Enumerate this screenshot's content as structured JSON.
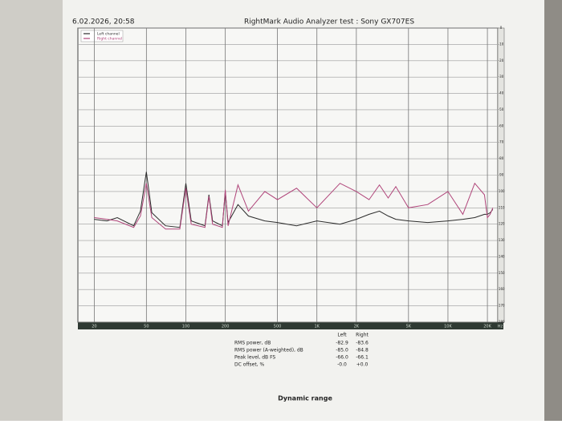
{
  "header": {
    "timestamp": "6.02.2026, 20:58",
    "title": "RightMark Audio Analyzer test : Sony GX707ES"
  },
  "chart_data": {
    "type": "line",
    "xscale": "log",
    "grid": true,
    "legend": "upper left",
    "x": [
      20,
      25,
      30,
      40,
      45,
      50,
      55,
      70,
      90,
      100,
      110,
      140,
      150,
      160,
      190,
      200,
      210,
      250,
      300,
      400,
      500,
      700,
      1000,
      1500,
      2000,
      2500,
      3000,
      3500,
      4000,
      5000,
      7000,
      10000,
      13000,
      16000,
      19000,
      20000,
      21000,
      22000
    ],
    "series": [
      {
        "name": "Left channel",
        "color": "#2b2b2b",
        "values": [
          -117,
          -118,
          -116,
          -121,
          -112,
          -88,
          -113,
          -121,
          -122,
          -95,
          -118,
          -121,
          -102,
          -118,
          -121,
          -100,
          -119,
          -108,
          -115,
          -118,
          -119,
          -121,
          -118,
          -120,
          -117,
          -114,
          -112,
          -115,
          -117,
          -118,
          -119,
          -118,
          -117,
          -116,
          -114,
          -114,
          -113,
          -111
        ]
      },
      {
        "name": "Right channel",
        "color": "#b0457a",
        "values": [
          -116,
          -117,
          -118,
          -122,
          -115,
          -95,
          -116,
          -123,
          -123,
          -98,
          -120,
          -122,
          -103,
          -120,
          -122,
          -99,
          -121,
          -96,
          -112,
          -100,
          -105,
          -98,
          -110,
          -95,
          -100,
          -105,
          -96,
          -104,
          -97,
          -110,
          -108,
          -100,
          -114,
          -95,
          -102,
          -116,
          -114,
          -110
        ]
      }
    ],
    "xlim": [
      15,
      24000
    ],
    "xticks": [
      20,
      50,
      100,
      200,
      500,
      {
        "value": 1000,
        "label": "1K"
      },
      {
        "value": 2000,
        "label": "2K"
      },
      {
        "value": 5000,
        "label": "5K"
      },
      {
        "value": 10000,
        "label": "10K"
      },
      {
        "value": 20000,
        "label": "20K"
      }
    ],
    "xunit": "Hz",
    "ylim": [
      -180,
      0
    ],
    "yticks": [
      0,
      -10,
      -20,
      -30,
      -40,
      -50,
      -60,
      -70,
      -80,
      -90,
      -100,
      -110,
      -120,
      -130,
      -140,
      -150,
      -160,
      -170,
      -180
    ]
  },
  "measurements": {
    "columns": [
      "Left",
      "Right"
    ],
    "rows": [
      {
        "label": "RMS power, dB",
        "values": [
          "-82.9",
          "-83.6"
        ]
      },
      {
        "label": "RMS power (A-weighted), dB",
        "values": [
          "-85.0",
          "-84.8"
        ]
      },
      {
        "label": "Peak level, dB FS",
        "values": [
          "-66.0",
          "-66.1"
        ]
      },
      {
        "label": "DC offset, %",
        "values": [
          "-0.0",
          "+0.0"
        ]
      }
    ]
  },
  "footer": {
    "caption": "Dynamic range"
  }
}
